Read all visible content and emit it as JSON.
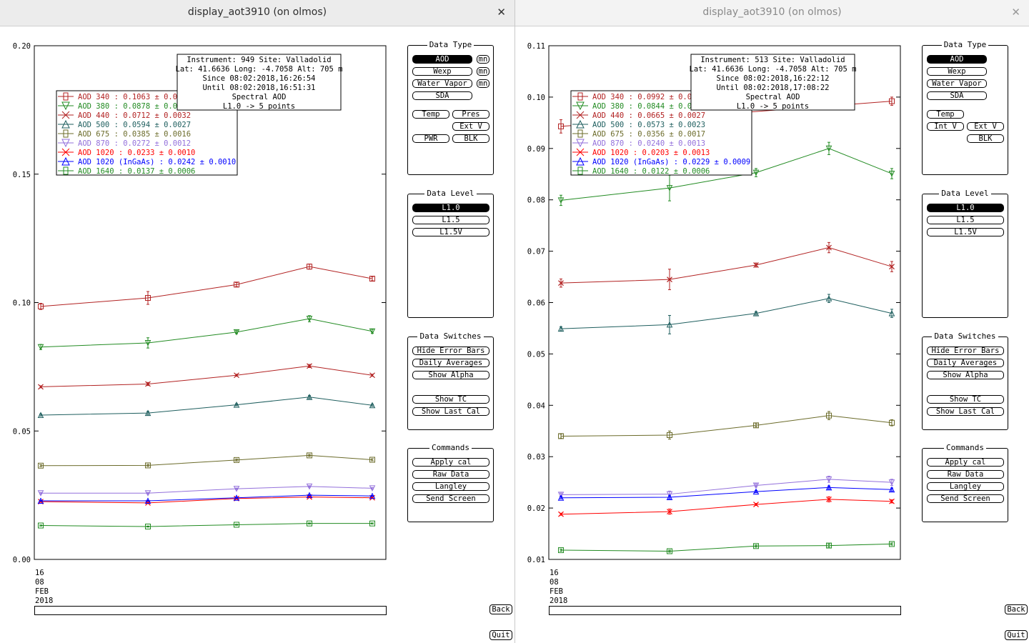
{
  "windows": [
    {
      "title": "display_aot3910 (on olmos)",
      "close_glyph": "✕",
      "info_lines": [
        "Instrument: 949 Site: Valladolid",
        "Lat: 41.6636 Long: -4.7058 Alt: 705 m",
        "Since 08:02:2018,16:26:54",
        "Until 08:02:2018,16:51:31",
        "Spectral AOD",
        "L1.0 -> 5 points"
      ],
      "legend": [
        {
          "label": "AOD 340  : 0.1063 ± 0.0",
          "color": "#b22222"
        },
        {
          "label": "AOD 380  : 0.0878 ± 0.0",
          "color": "#228b22"
        },
        {
          "label": "AOD 440  : 0.0712 ± 0.0032",
          "color": "#b22222"
        },
        {
          "label": "AOD 500  : 0.0594 ± 0.0027",
          "color": "#1e5e5e"
        },
        {
          "label": "AOD 675  : 0.0385 ± 0.0016",
          "color": "#6b6b2a"
        },
        {
          "label": "AOD 870  : 0.0272 ± 0.0012",
          "color": "#9370db"
        },
        {
          "label": "AOD 1020  : 0.0233 ± 0.0010",
          "color": "#ff0000"
        },
        {
          "label": "AOD 1020 (InGaAs)  : 0.0242 ± 0.0010",
          "color": "#0000ff"
        },
        {
          "label": "AOD 1640  : 0.0137 ± 0.0006",
          "color": "#228b22"
        }
      ],
      "x_label_lines": [
        "16",
        "08",
        "FEB",
        "2018"
      ],
      "data_type": {
        "title": "Data Type",
        "aod": "AOD",
        "wexp": "Wexp",
        "water_vapor": "Water Vapor",
        "sda": "SDA",
        "mn": "mn",
        "temp": "Temp",
        "pres": "Pres",
        "ext_v": "Ext V",
        "pwr": "PWR",
        "blk": "BLK"
      },
      "data_level": {
        "title": "Data Level",
        "options": [
          "L1.0",
          "L1.5",
          "L1.5V"
        ],
        "selected": "L1.0"
      },
      "data_switches": {
        "title": "Data Switches",
        "hide_error_bars": "Hide Error Bars",
        "daily_averages": "Daily Averages",
        "show_alpha": "Show Alpha",
        "show_tc": "Show TC",
        "show_last_cal": "Show Last Cal"
      },
      "commands": {
        "title": "Commands",
        "apply_cal": "Apply cal",
        "raw_data": "Raw Data",
        "langley": "Langley",
        "send_screen": "Send Screen"
      },
      "back": "Back",
      "quit": "Quit",
      "chart_data": {
        "type": "line",
        "ylim": [
          0.0,
          0.2
        ],
        "yticks": [
          "0.00",
          "0.05",
          "0.10",
          "0.15",
          "0.20"
        ],
        "series": [
          {
            "name": "AOD 340",
            "color": "#b22222",
            "marker": "square",
            "values": [
              0.0985,
              0.1018,
              0.107,
              0.114,
              0.1093
            ],
            "err": [
              0.0012,
              0.0025,
              0.0008,
              0.001,
              0.0008
            ]
          },
          {
            "name": "AOD 380",
            "color": "#228b22",
            "marker": "tri-down",
            "values": [
              0.0827,
              0.0843,
              0.0885,
              0.0937,
              0.0888
            ],
            "err": [
              0.001,
              0.002,
              0.0006,
              0.0012,
              0.0008
            ]
          },
          {
            "name": "AOD 440",
            "color": "#b22222",
            "marker": "x",
            "values": [
              0.0672,
              0.0683,
              0.0717,
              0.0753,
              0.0717
            ],
            "err": [
              0.0004,
              0.0006,
              0.0004,
              0.0006,
              0.0004
            ]
          },
          {
            "name": "AOD 500",
            "color": "#1e5e5e",
            "marker": "tri-up",
            "values": [
              0.0562,
              0.057,
              0.0602,
              0.0632,
              0.06
            ],
            "err": [
              0.0004,
              0.0006,
              0.0004,
              0.0006,
              0.0004
            ]
          },
          {
            "name": "AOD 675",
            "color": "#6b6b2a",
            "marker": "square",
            "values": [
              0.0365,
              0.0366,
              0.0387,
              0.0405,
              0.0388
            ],
            "err": [
              0.0004,
              0.0004,
              0.0004,
              0.0004,
              0.0004
            ]
          },
          {
            "name": "AOD 870",
            "color": "#9370db",
            "marker": "tri-down",
            "values": [
              0.0258,
              0.0258,
              0.0275,
              0.0284,
              0.0277
            ],
            "err": [
              0.0003,
              0.0003,
              0.0003,
              0.0003,
              0.0003
            ]
          },
          {
            "name": "AOD 1020",
            "color": "#ff0000",
            "marker": "x",
            "values": [
              0.0225,
              0.022,
              0.0237,
              0.0243,
              0.024
            ],
            "err": [
              0.0002,
              0.0002,
              0.0002,
              0.0002,
              0.0002
            ]
          },
          {
            "name": "AOD 1020 (InGaAs)",
            "color": "#0000ff",
            "marker": "tri-up",
            "values": [
              0.0228,
              0.0228,
              0.024,
              0.025,
              0.0247
            ],
            "err": [
              0.0002,
              0.0002,
              0.0002,
              0.0002,
              0.0002
            ]
          },
          {
            "name": "AOD 1640",
            "color": "#228b22",
            "marker": "square",
            "values": [
              0.0132,
              0.0128,
              0.0135,
              0.014,
              0.014
            ],
            "err": [
              0.0002,
              0.0002,
              0.0002,
              0.0002,
              0.0002
            ]
          }
        ]
      }
    },
    {
      "title": "display_aot3910 (on olmos)",
      "close_glyph": "✕",
      "info_lines": [
        "Instrument: 513 Site: Valladolid",
        "Lat: 41.6636 Long: -4.7058 Alt: 705 m",
        "Since 08:02:2018,16:22:12",
        "Until 08:02:2018,17:08:22",
        "Spectral AOD",
        "L1.0 -> 5 points"
      ],
      "legend": [
        {
          "label": "AOD 340  : 0.0992 ± 0.0",
          "color": "#b22222"
        },
        {
          "label": "AOD 380  : 0.0844 ± 0.0",
          "color": "#228b22"
        },
        {
          "label": "AOD 440  : 0.0665 ± 0.0027",
          "color": "#b22222"
        },
        {
          "label": "AOD 500  : 0.0573 ± 0.0023",
          "color": "#1e5e5e"
        },
        {
          "label": "AOD 675  : 0.0356 ± 0.0017",
          "color": "#6b6b2a"
        },
        {
          "label": "AOD 870  : 0.0240 ± 0.0013",
          "color": "#9370db"
        },
        {
          "label": "AOD 1020  : 0.0203 ± 0.0013",
          "color": "#ff0000"
        },
        {
          "label": "AOD 1020 (InGaAs)  : 0.0229 ± 0.0009",
          "color": "#0000ff"
        },
        {
          "label": "AOD 1640  : 0.0122 ± 0.0006",
          "color": "#228b22"
        }
      ],
      "x_label_lines": [
        "16",
        "08",
        "FEB",
        "2018"
      ],
      "data_type": {
        "title": "Data Type",
        "aod": "AOD",
        "wexp": "Wexp",
        "water_vapor": "Water Vapor",
        "sda": "SDA",
        "temp": "Temp",
        "int_v": "Int V",
        "ext_v": "Ext V",
        "blk": "BLK"
      },
      "data_level": {
        "title": "Data Level",
        "options": [
          "L1.0",
          "L1.5",
          "L1.5V"
        ],
        "selected": "L1.0"
      },
      "data_switches": {
        "title": "Data Switches",
        "hide_error_bars": "Hide Error Bars",
        "daily_averages": "Daily Averages",
        "show_alpha": "Show Alpha",
        "show_tc": "Show TC",
        "show_last_cal": "Show Last Cal"
      },
      "commands": {
        "title": "Commands",
        "apply_cal": "Apply cal",
        "raw_data": "Raw Data",
        "langley": "Langley",
        "send_screen": "Send Screen"
      },
      "back": "Back",
      "quit": "Quit",
      "chart_data": {
        "type": "line",
        "ylim": [
          0.01,
          0.11
        ],
        "yticks": [
          "0.01",
          "0.02",
          "0.03",
          "0.04",
          "0.05",
          "0.06",
          "0.07",
          "0.08",
          "0.09",
          "0.10",
          "0.11"
        ],
        "series": [
          {
            "name": "AOD 340",
            "color": "#b22222",
            "marker": "square",
            "values": [
              0.0943,
              null,
              null,
              null,
              0.0992
            ],
            "err": [
              0.0013,
              0,
              0,
              0,
              0.0008
            ]
          },
          {
            "name": "AOD 380",
            "color": "#228b22",
            "marker": "tri-down",
            "values": [
              0.0799,
              0.0823,
              0.0853,
              0.09,
              0.0851
            ],
            "err": [
              0.001,
              0.0025,
              0.0008,
              0.0012,
              0.001
            ]
          },
          {
            "name": "AOD 440",
            "color": "#b22222",
            "marker": "x",
            "values": [
              0.0638,
              0.0645,
              0.0673,
              0.0707,
              0.067
            ],
            "err": [
              0.0008,
              0.002,
              0.0004,
              0.001,
              0.001
            ]
          },
          {
            "name": "AOD 500",
            "color": "#1e5e5e",
            "marker": "tri-up",
            "values": [
              0.0549,
              0.0557,
              0.0579,
              0.0608,
              0.0579
            ],
            "err": [
              0.0004,
              0.0018,
              0.0003,
              0.0008,
              0.0008
            ]
          },
          {
            "name": "AOD 675",
            "color": "#6b6b2a",
            "marker": "square",
            "values": [
              0.034,
              0.0342,
              0.0361,
              0.038,
              0.0366
            ],
            "err": [
              0.0004,
              0.0008,
              0.0003,
              0.0008,
              0.0006
            ]
          },
          {
            "name": "AOD 870",
            "color": "#9370db",
            "marker": "tri-down",
            "values": [
              0.0226,
              0.0227,
              0.0244,
              0.0256,
              0.025
            ],
            "err": [
              0.0003,
              0.0006,
              0.0003,
              0.0006,
              0.0006
            ]
          },
          {
            "name": "AOD 1020",
            "color": "#ff0000",
            "marker": "x",
            "values": [
              0.0188,
              0.0193,
              0.0207,
              0.0217,
              0.0213
            ],
            "err": [
              0.0002,
              0.0005,
              0.0002,
              0.0005,
              0.0003
            ]
          },
          {
            "name": "AOD 1020 (InGaAs)",
            "color": "#0000ff",
            "marker": "tri-up",
            "values": [
              0.022,
              0.0221,
              0.0232,
              0.024,
              0.0236
            ],
            "err": [
              0.0002,
              0.0003,
              0.0002,
              0.0003,
              0.0003
            ]
          },
          {
            "name": "AOD 1640",
            "color": "#228b22",
            "marker": "square",
            "values": [
              0.0118,
              0.0116,
              0.0126,
              0.0127,
              0.013
            ],
            "err": [
              0.0002,
              0.0002,
              0.0002,
              0.0003,
              0.0002
            ]
          }
        ]
      }
    }
  ]
}
